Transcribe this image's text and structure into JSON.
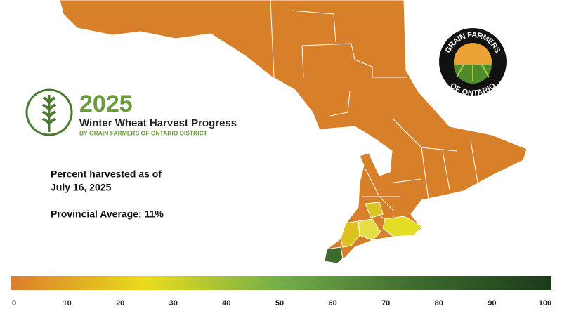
{
  "header": {
    "year": "2025",
    "title": "Winter Wheat Harvest Progress",
    "subtitle": "BY GRAIN FARMERS OF ONTARIO DISTRICT"
  },
  "note": {
    "line1": "Percent harvested as of",
    "line2": "July 16, 2025",
    "average": "Provincial Average: 11%"
  },
  "logo": {
    "top": "GRAIN FARMERS",
    "bottom": "OF ONTARIO"
  },
  "legend": {
    "range": [
      0,
      100
    ],
    "ticks": [
      0,
      10,
      20,
      30,
      40,
      50,
      60,
      70,
      80,
      90,
      100
    ],
    "colors": [
      "#d97f2b",
      "#e9dc1c",
      "#72ae4a",
      "#3f6b2e",
      "#1b3a1a"
    ]
  }
}
